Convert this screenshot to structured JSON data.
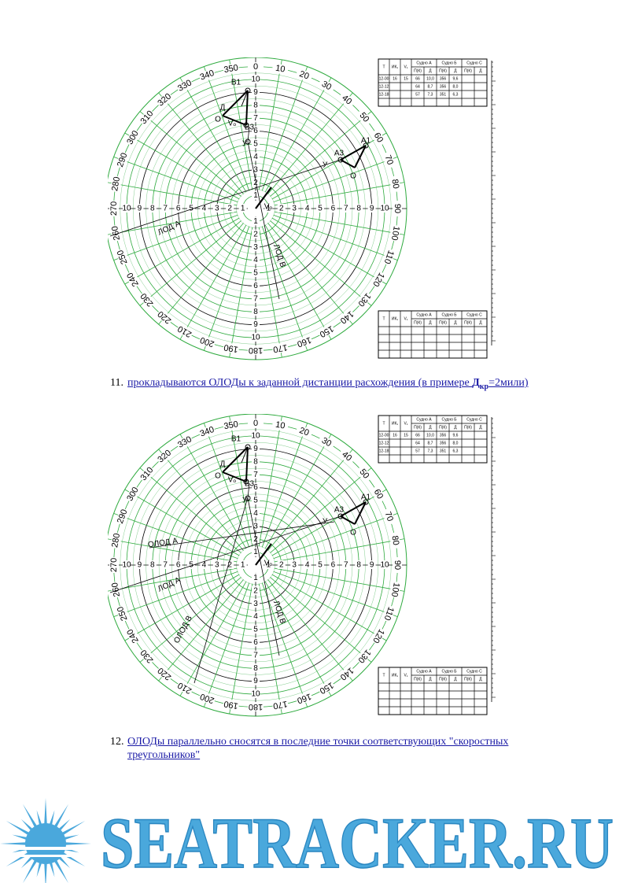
{
  "radar": {
    "bearings": [
      "0",
      "10",
      "20",
      "30",
      "40",
      "50",
      "60",
      "70",
      "80",
      "90",
      "100",
      "110",
      "120",
      "130",
      "140",
      "150",
      "160",
      "170",
      "180",
      "190",
      "200",
      "210",
      "220",
      "230",
      "240",
      "250",
      "260",
      "270",
      "280",
      "290",
      "300",
      "310",
      "320",
      "330",
      "340",
      "350"
    ],
    "distances": [
      "1",
      "2",
      "3",
      "4",
      "5",
      "6",
      "7",
      "8",
      "9",
      "10"
    ]
  },
  "table": {
    "header": [
      "T",
      "ИК₁",
      "V₁",
      "Судно А",
      "Судно Б",
      "Судно С"
    ],
    "subheader": [
      "П(К)",
      "Д",
      "П(К)",
      "Д",
      "П(К)",
      "Д"
    ],
    "rows": [
      [
        "12-00",
        "16",
        "15",
        "66",
        "10,0",
        "356",
        "9,6",
        "",
        ""
      ],
      [
        "12-12",
        "",
        "",
        "64",
        "8,7",
        "356",
        "8,0",
        "",
        ""
      ],
      [
        "12-18",
        "",
        "",
        "57",
        "7,3",
        "351",
        "6,3",
        "",
        ""
      ]
    ]
  },
  "figures": [
    {
      "annotations": [
        "В1",
        "О",
        "Д",
        "Vₒ",
        "В3",
        "У",
        "А1",
        "А3",
        "У",
        "О",
        "ЛОД А",
        "ЛОД В",
        "Vₒ"
      ]
    },
    {
      "annotations": [
        "В1",
        "О",
        "Д",
        "Vₒ",
        "В3",
        "У",
        "А1",
        "А3",
        "У",
        "О",
        "ЛОД А",
        "ЛОД В",
        "Vₒ",
        "ОЛОД А",
        "ОЛОД В"
      ]
    }
  ],
  "list": [
    {
      "number": "11.",
      "text": "прокладываются ОЛОДы к заданной дистанции расхождения (в примере ",
      "d": "Д",
      "sub": "кр",
      "tail": "=2мили)"
    },
    {
      "number": "12.",
      "text": "ОЛОДы параллельно сносятся в последние точки соответствующих \"скоростных треугольников\""
    }
  ],
  "logo": "SEATRACKER.RU"
}
